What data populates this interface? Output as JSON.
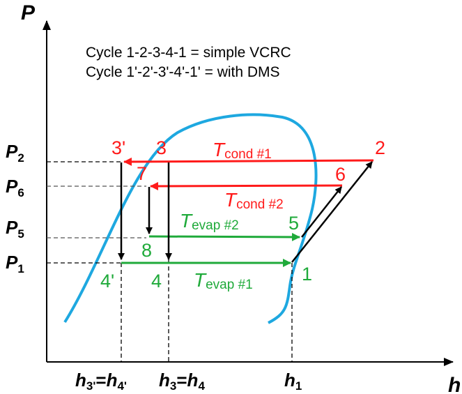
{
  "axes": {
    "y_title": "P",
    "x_title": "h"
  },
  "legend": {
    "line1": "Cycle 1-2-3-4-1 = simple VCRC",
    "line2": "Cycle 1'-2'-3'-4'-1' = with DMS"
  },
  "pressure_labels": [
    {
      "main": "P",
      "sub": "2"
    },
    {
      "main": "P",
      "sub": "6"
    },
    {
      "main": "P",
      "sub": "5"
    },
    {
      "main": "P",
      "sub": "1"
    }
  ],
  "enthalpy_labels": {
    "h34prime": {
      "h1": "h",
      "s1": "3'",
      "eq": "=",
      "h2": "h",
      "s2": "4'"
    },
    "h34": {
      "h1": "h",
      "s1": "3",
      "eq": "=",
      "h2": "h",
      "s2": "4"
    },
    "h1": {
      "h": "h",
      "s": "1"
    }
  },
  "points": {
    "p3prime": "3'",
    "p3": "3",
    "p2": "2",
    "p7": "7",
    "p6": "6",
    "p5": "5",
    "p8": "8",
    "p4prime": "4'",
    "p4": "4",
    "p1": "1"
  },
  "process_labels": {
    "cond1": {
      "t": "T",
      "sub": "cond #1"
    },
    "cond2": {
      "t": "T",
      "sub": "cond #2"
    },
    "evap2": {
      "t": "T",
      "sub": "evap #2"
    },
    "evap1": {
      "t": "T",
      "sub": "evap #1"
    }
  },
  "colors": {
    "dome": "#1ea8e0",
    "condenser": "#ff1a1a",
    "evaporator": "#1faa3a",
    "axes": "#000000",
    "guides": "#000000"
  }
}
